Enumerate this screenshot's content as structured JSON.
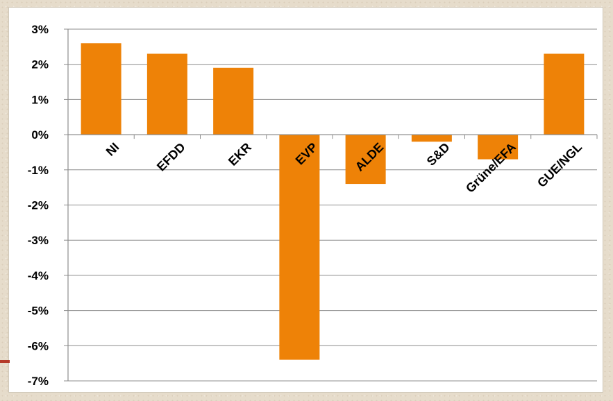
{
  "chart_data": {
    "type": "bar",
    "categories": [
      "NI",
      "EFDD",
      "EKR",
      "EVP",
      "ALDE",
      "S&D",
      "Grüne/EFA",
      "GUE/NGL"
    ],
    "values": [
      2.6,
      2.3,
      1.9,
      -6.4,
      -1.4,
      -0.2,
      -0.7,
      2.3
    ],
    "y_tick_labels": [
      "3%",
      "2%",
      "1%",
      "0%",
      "-1%",
      "-2%",
      "-3%",
      "-4%",
      "-5%",
      "-6%",
      "-7%"
    ],
    "ylim": [
      -7,
      3
    ],
    "grid": true,
    "legend": "none",
    "title": "",
    "xlabel": "",
    "ylabel": "",
    "bar_color": "#ee8207"
  }
}
